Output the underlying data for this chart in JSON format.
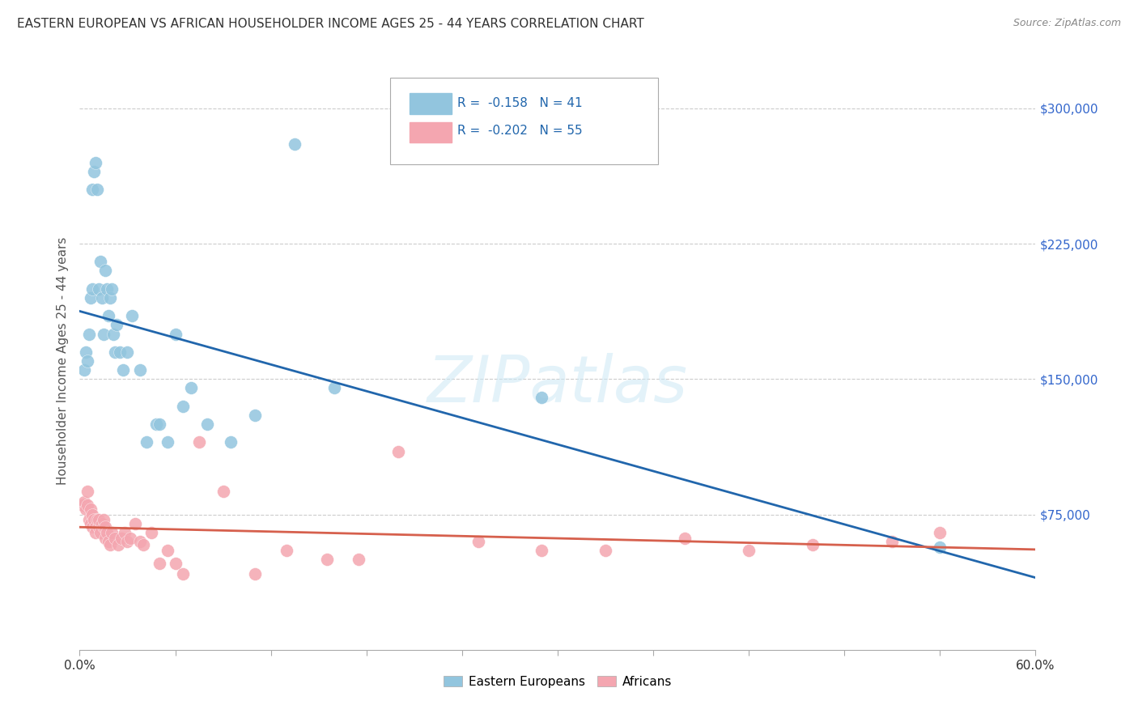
{
  "title": "EASTERN EUROPEAN VS AFRICAN HOUSEHOLDER INCOME AGES 25 - 44 YEARS CORRELATION CHART",
  "source": "Source: ZipAtlas.com",
  "ylabel": "Householder Income Ages 25 - 44 years",
  "xlim": [
    0.0,
    0.6
  ],
  "ylim": [
    0,
    320000
  ],
  "yticks": [
    75000,
    150000,
    225000,
    300000
  ],
  "ytick_labels": [
    "$75,000",
    "$150,000",
    "$225,000",
    "$300,000"
  ],
  "xticks": [
    0.0,
    0.06,
    0.12,
    0.18,
    0.24,
    0.3,
    0.36,
    0.42,
    0.48,
    0.54,
    0.6
  ],
  "xtick_labels_show": {
    "0.0": "0.0%",
    "0.6": "60.0%"
  },
  "blue_R": -0.158,
  "blue_N": 41,
  "pink_R": -0.202,
  "pink_N": 55,
  "blue_color": "#92c5de",
  "pink_color": "#f4a6b0",
  "blue_line_color": "#2166ac",
  "pink_line_color": "#d6604d",
  "tick_label_color": "#3366cc",
  "watermark_text": "ZIPatlas",
  "blue_scatter_x": [
    0.003,
    0.004,
    0.005,
    0.006,
    0.007,
    0.008,
    0.008,
    0.009,
    0.01,
    0.011,
    0.012,
    0.013,
    0.014,
    0.015,
    0.016,
    0.017,
    0.018,
    0.019,
    0.02,
    0.021,
    0.022,
    0.023,
    0.025,
    0.027,
    0.03,
    0.033,
    0.038,
    0.042,
    0.048,
    0.05,
    0.055,
    0.06,
    0.065,
    0.07,
    0.08,
    0.095,
    0.11,
    0.135,
    0.16,
    0.29,
    0.54
  ],
  "blue_scatter_y": [
    155000,
    165000,
    160000,
    175000,
    195000,
    200000,
    255000,
    265000,
    270000,
    255000,
    200000,
    215000,
    195000,
    175000,
    210000,
    200000,
    185000,
    195000,
    200000,
    175000,
    165000,
    180000,
    165000,
    155000,
    165000,
    185000,
    155000,
    115000,
    125000,
    125000,
    115000,
    175000,
    135000,
    145000,
    125000,
    115000,
    130000,
    280000,
    145000,
    140000,
    57000
  ],
  "pink_scatter_x": [
    0.002,
    0.003,
    0.004,
    0.005,
    0.005,
    0.006,
    0.007,
    0.007,
    0.008,
    0.008,
    0.009,
    0.01,
    0.01,
    0.011,
    0.012,
    0.012,
    0.013,
    0.014,
    0.015,
    0.015,
    0.016,
    0.016,
    0.017,
    0.018,
    0.019,
    0.02,
    0.022,
    0.024,
    0.026,
    0.028,
    0.03,
    0.032,
    0.035,
    0.038,
    0.04,
    0.045,
    0.05,
    0.055,
    0.06,
    0.065,
    0.075,
    0.09,
    0.11,
    0.13,
    0.155,
    0.175,
    0.2,
    0.25,
    0.29,
    0.33,
    0.38,
    0.42,
    0.46,
    0.51,
    0.54
  ],
  "pink_scatter_y": [
    80000,
    82000,
    78000,
    80000,
    88000,
    72000,
    70000,
    78000,
    68000,
    75000,
    72000,
    68000,
    65000,
    72000,
    68000,
    72000,
    65000,
    70000,
    68000,
    72000,
    62000,
    68000,
    65000,
    60000,
    58000,
    65000,
    62000,
    58000,
    62000,
    65000,
    60000,
    62000,
    70000,
    60000,
    58000,
    65000,
    48000,
    55000,
    48000,
    42000,
    115000,
    88000,
    42000,
    55000,
    50000,
    50000,
    110000,
    60000,
    55000,
    55000,
    62000,
    55000,
    58000,
    60000,
    65000
  ]
}
